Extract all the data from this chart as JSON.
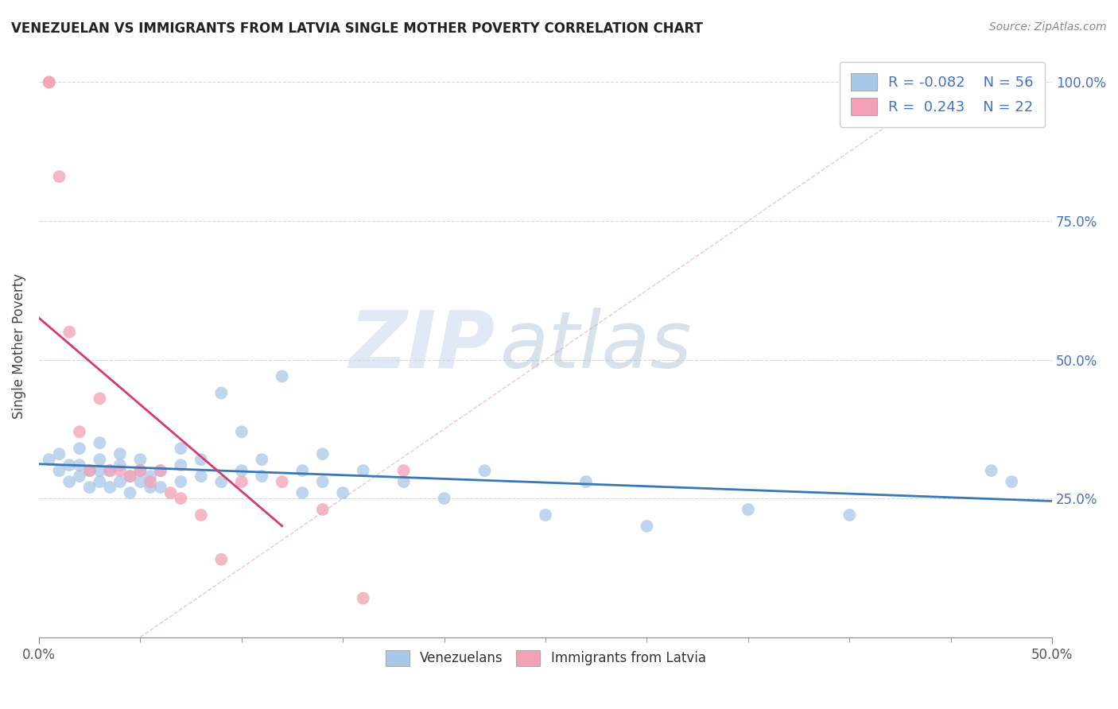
{
  "title": "VENEZUELAN VS IMMIGRANTS FROM LATVIA SINGLE MOTHER POVERTY CORRELATION CHART",
  "source": "Source: ZipAtlas.com",
  "ylabel": "Single Mother Poverty",
  "xlim": [
    0.0,
    0.5
  ],
  "ylim": [
    0.0,
    1.05
  ],
  "xtick_positions": [
    0.0,
    0.5
  ],
  "xtick_labels": [
    "0.0%",
    "50.0%"
  ],
  "yticks_right": [
    0.25,
    0.5,
    0.75,
    1.0
  ],
  "ytick_labels_right": [
    "25.0%",
    "50.0%",
    "75.0%",
    "100.0%"
  ],
  "legend_r1": "R = -0.082",
  "legend_n1": "N = 56",
  "legend_r2": "R =  0.243",
  "legend_n2": "N = 22",
  "blue_color": "#a8c8e8",
  "pink_color": "#f4a0b5",
  "blue_line_color": "#3a78b5",
  "pink_line_color": "#d63a6e",
  "watermark_zip": "ZIP",
  "watermark_atlas": "atlas",
  "venezuelan_x": [
    0.005,
    0.01,
    0.01,
    0.015,
    0.015,
    0.02,
    0.02,
    0.02,
    0.025,
    0.025,
    0.03,
    0.03,
    0.03,
    0.03,
    0.035,
    0.035,
    0.04,
    0.04,
    0.04,
    0.045,
    0.045,
    0.05,
    0.05,
    0.05,
    0.055,
    0.055,
    0.06,
    0.06,
    0.07,
    0.07,
    0.07,
    0.08,
    0.08,
    0.09,
    0.09,
    0.1,
    0.1,
    0.11,
    0.11,
    0.12,
    0.13,
    0.13,
    0.14,
    0.14,
    0.15,
    0.16,
    0.18,
    0.2,
    0.22,
    0.25,
    0.27,
    0.3,
    0.35,
    0.4,
    0.47,
    0.48
  ],
  "venezuelan_y": [
    0.32,
    0.3,
    0.33,
    0.28,
    0.31,
    0.29,
    0.31,
    0.34,
    0.27,
    0.3,
    0.28,
    0.3,
    0.32,
    0.35,
    0.27,
    0.3,
    0.28,
    0.31,
    0.33,
    0.26,
    0.29,
    0.28,
    0.3,
    0.32,
    0.27,
    0.29,
    0.27,
    0.3,
    0.28,
    0.31,
    0.34,
    0.29,
    0.32,
    0.28,
    0.44,
    0.3,
    0.37,
    0.29,
    0.32,
    0.47,
    0.26,
    0.3,
    0.28,
    0.33,
    0.26,
    0.3,
    0.28,
    0.25,
    0.3,
    0.22,
    0.28,
    0.2,
    0.23,
    0.22,
    0.3,
    0.28
  ],
  "latvia_x": [
    0.005,
    0.005,
    0.01,
    0.015,
    0.02,
    0.025,
    0.03,
    0.035,
    0.04,
    0.045,
    0.05,
    0.055,
    0.06,
    0.065,
    0.07,
    0.08,
    0.09,
    0.1,
    0.12,
    0.14,
    0.16,
    0.18
  ],
  "latvia_y": [
    1.0,
    1.0,
    0.83,
    0.55,
    0.37,
    0.3,
    0.43,
    0.3,
    0.3,
    0.29,
    0.3,
    0.28,
    0.3,
    0.26,
    0.25,
    0.22,
    0.14,
    0.28,
    0.28,
    0.23,
    0.07,
    0.3
  ],
  "pink_line_x": [
    0.0,
    0.12
  ],
  "pink_line_y_from_data": true,
  "diag_line_x": [
    0.0,
    0.45
  ],
  "diag_line_y": [
    0.0,
    1.0
  ]
}
